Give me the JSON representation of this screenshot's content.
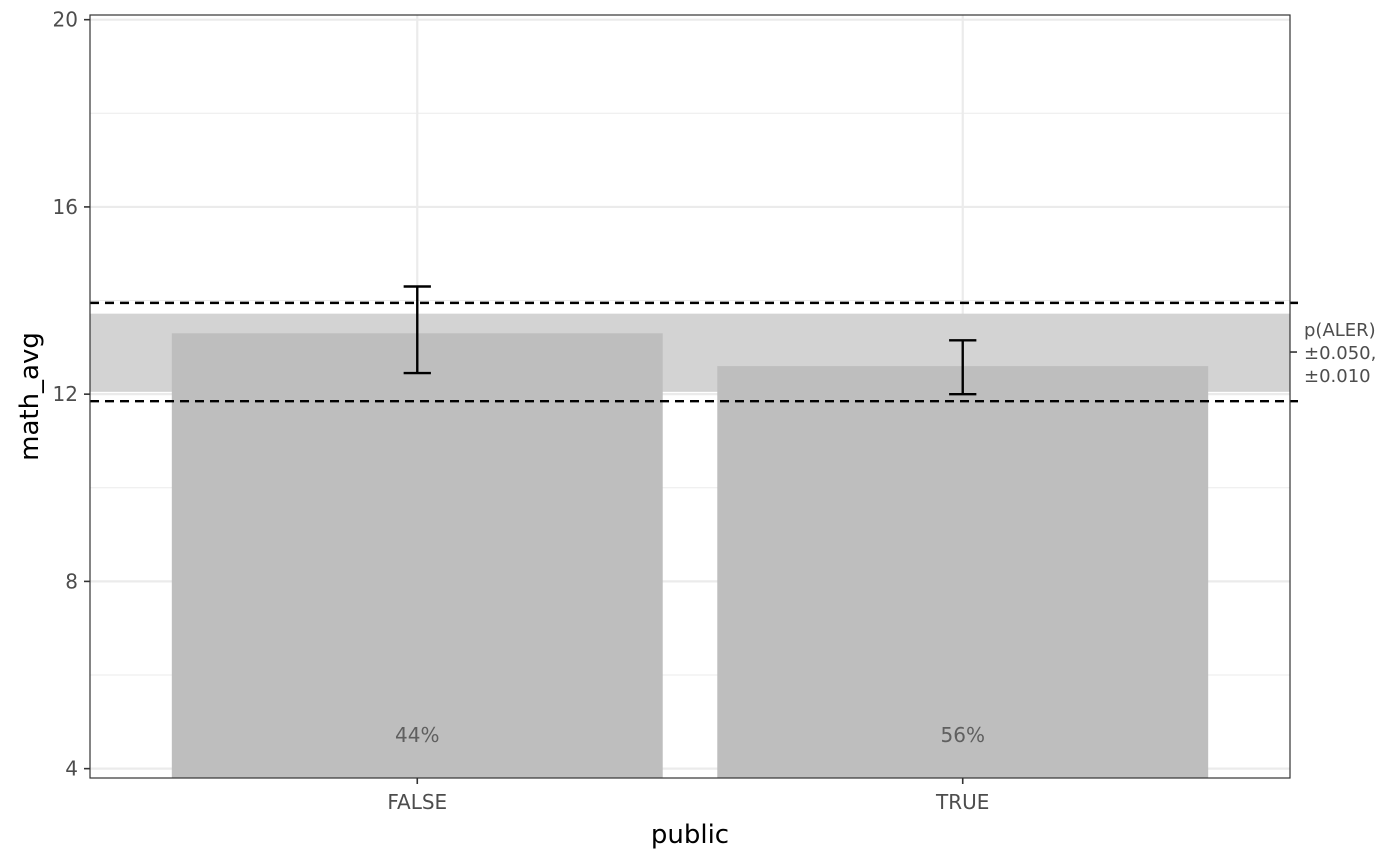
{
  "chart_data": {
    "type": "bar",
    "xlabel": "public",
    "ylabel": "math_avg",
    "categories": [
      "FALSE",
      "TRUE"
    ],
    "values": [
      13.3,
      12.6
    ],
    "error_bars": [
      {
        "low": 12.45,
        "high": 14.3
      },
      {
        "low": 12.0,
        "high": 13.15
      }
    ],
    "bar_labels": [
      "44%",
      "56%"
    ],
    "ylim": [
      3.8,
      20.1
    ],
    "yticks": [
      "4",
      "8",
      "12",
      "16",
      "20"
    ],
    "reference_band": {
      "low": 12.05,
      "high": 13.72
    },
    "reference_lines": [
      13.95,
      11.85
    ],
    "side_annotation": {
      "value": 12.9,
      "lines": [
        "p(ALER)",
        "±0.050,",
        "±0.010"
      ]
    },
    "grid": true,
    "colors": {
      "bar": "#bebebe",
      "band": "#d3d3d3",
      "grid": "#ebebeb",
      "error_bar": "#000000",
      "reference_line": "#000000"
    }
  }
}
